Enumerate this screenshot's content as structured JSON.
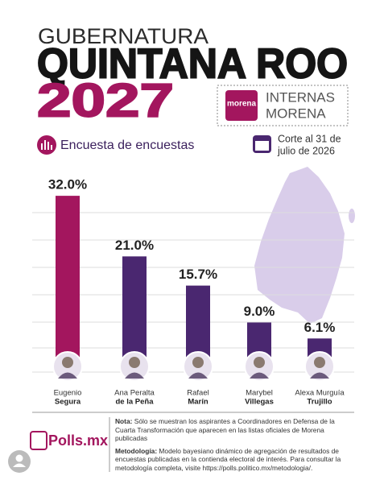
{
  "header": {
    "kicker": "GUBERNATURA",
    "title": "QUINTANA ROO",
    "year": "2027",
    "badge_logo": "morena",
    "badge": [
      "INTERNAS",
      "MORENA"
    ],
    "subtitle": "Encuesta de encuestas",
    "cutoff": [
      "Corte al 31 de",
      "julio de 2026"
    ]
  },
  "chart_data": {
    "type": "bar",
    "categories": [
      [
        "Eugenio",
        "Segura"
      ],
      [
        "Ana Peralta",
        "de la Peña"
      ],
      [
        "Rafael",
        "Marín"
      ],
      [
        "Marybel",
        "Villegas"
      ],
      [
        "Alexa Murguía",
        "Trujillo"
      ]
    ],
    "values": [
      32.0,
      21.0,
      15.7,
      9.0,
      6.1
    ],
    "value_labels": [
      "32.0%",
      "21.0%",
      "15.7%",
      "9.0%",
      "6.1%"
    ],
    "colors": [
      "#a3165e",
      "#4a2770",
      "#4a2770",
      "#4a2770",
      "#4a2770"
    ],
    "grid": true
  },
  "footer": {
    "logo": "Polls.mx",
    "notes": [
      {
        "label": "Nota:",
        "text": " Sólo se muestran los aspirantes a Coordinadores en Defensa de la Cuarta Transformación que aparecen en las listas oficiales de Morena publicadas"
      },
      {
        "label": "Metodología:",
        "text": " Modelo bayesiano dinámico de agregación de resultados de encuestas publicadas en la contienda electoral de interés. Para consultar la metodología completa, visite https://polls.politico.mx/metodologia/."
      }
    ]
  }
}
